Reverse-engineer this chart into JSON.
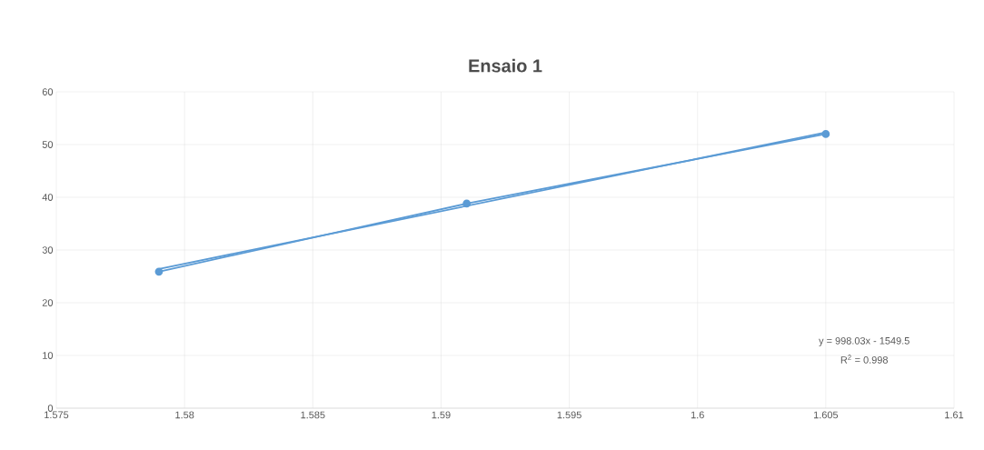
{
  "chart_data": {
    "type": "line",
    "title": "Ensaio 1",
    "series": [
      {
        "color": "#5b9bd5",
        "x": [
          1.579,
          1.591,
          1.605
        ],
        "values": [
          25.9,
          38.8,
          52.0
        ],
        "marker": "circle"
      },
      {
        "type": "line",
        "color": "#5b9bd5",
        "x": [
          1.579,
          1.605
        ],
        "values": [
          26.4,
          52.3
        ],
        "marker": "none"
      }
    ],
    "xlim": [
      1.575,
      1.61
    ],
    "xticks": [
      1.575,
      1.58,
      1.585,
      1.59,
      1.595,
      1.6,
      1.605,
      1.61
    ],
    "ylim": [
      0,
      60
    ],
    "yticks": [
      0,
      10,
      20,
      30,
      40,
      50,
      60
    ],
    "grid": true,
    "annotations": [
      "y = 998.03x - 1549.5",
      "R$^{2}$ = 0.998"
    ]
  }
}
